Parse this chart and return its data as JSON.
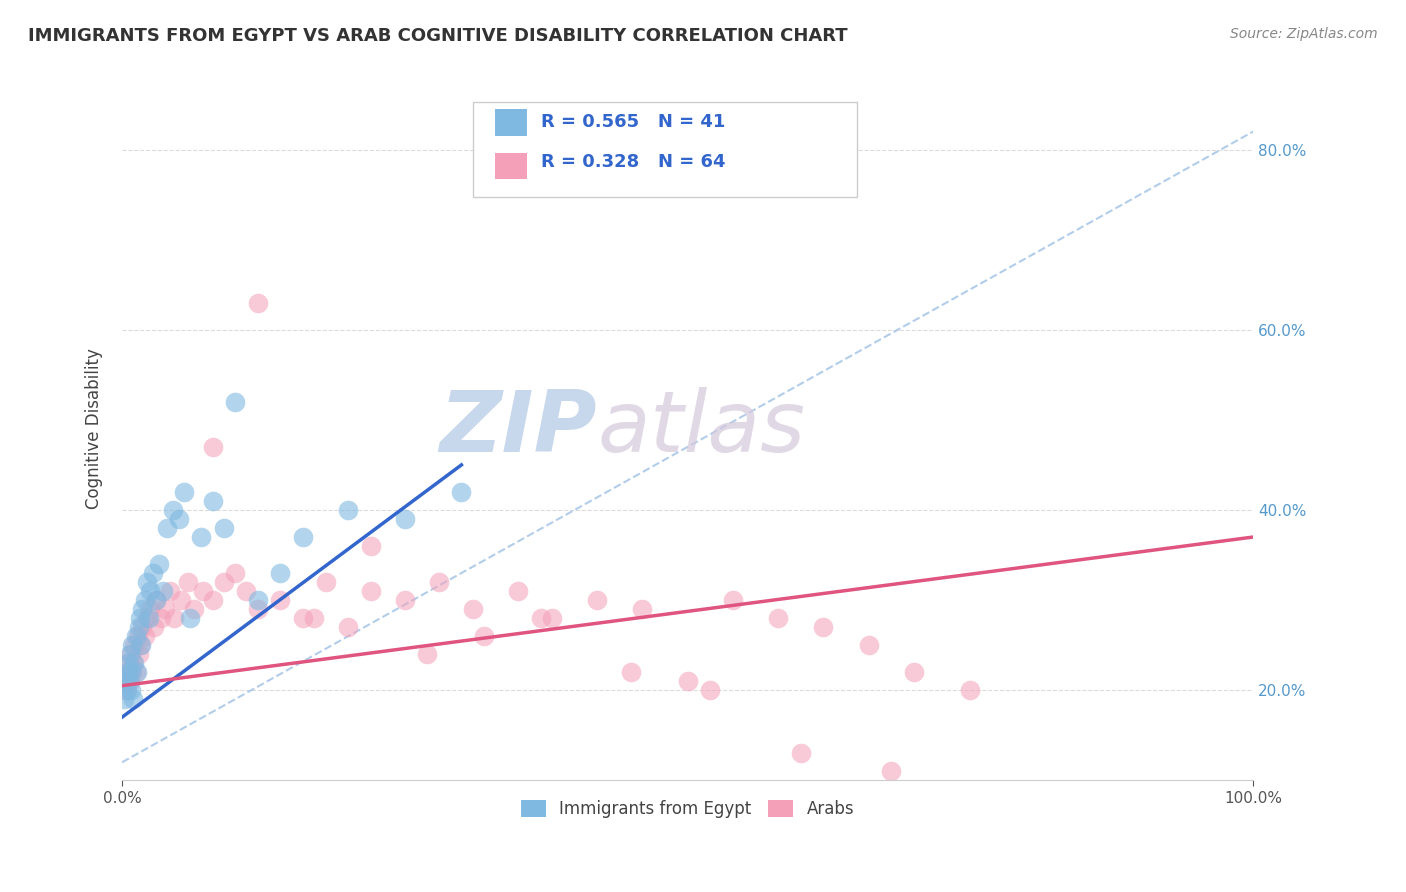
{
  "title": "IMMIGRANTS FROM EGYPT VS ARAB COGNITIVE DISABILITY CORRELATION CHART",
  "source": "Source: ZipAtlas.com",
  "ylabel": "Cognitive Disability",
  "legend_labels": [
    "Immigrants from Egypt",
    "Arabs"
  ],
  "legend_r": [
    0.565,
    0.328
  ],
  "legend_n": [
    41,
    64
  ],
  "blue_color": "#7fb8e0",
  "pink_color": "#f4a0b8",
  "blue_line_color": "#3366cc",
  "pink_line_color": "#e05580",
  "title_color": "#333333",
  "axis_label_color": "#444444",
  "watermark_color": "#cdd8e8",
  "background_color": "#ffffff",
  "xlim": [
    0.0,
    1.0
  ],
  "ylim": [
    0.1,
    0.88
  ],
  "yticks": [
    0.2,
    0.4,
    0.6,
    0.8
  ],
  "grid_color": "#cccccc",
  "blue_scatter_x": [
    0.002,
    0.003,
    0.004,
    0.005,
    0.005,
    0.006,
    0.007,
    0.008,
    0.008,
    0.009,
    0.01,
    0.011,
    0.012,
    0.013,
    0.015,
    0.016,
    0.017,
    0.018,
    0.02,
    0.022,
    0.024,
    0.025,
    0.027,
    0.03,
    0.033,
    0.036,
    0.04,
    0.045,
    0.05,
    0.055,
    0.06,
    0.07,
    0.08,
    0.09,
    0.1,
    0.12,
    0.14,
    0.16,
    0.2,
    0.25,
    0.3
  ],
  "blue_scatter_y": [
    0.19,
    0.21,
    0.2,
    0.22,
    0.23,
    0.21,
    0.24,
    0.2,
    0.22,
    0.25,
    0.19,
    0.23,
    0.26,
    0.22,
    0.27,
    0.28,
    0.25,
    0.29,
    0.3,
    0.32,
    0.28,
    0.31,
    0.33,
    0.3,
    0.34,
    0.31,
    0.38,
    0.4,
    0.39,
    0.42,
    0.28,
    0.37,
    0.41,
    0.38,
    0.52,
    0.3,
    0.33,
    0.37,
    0.4,
    0.39,
    0.42
  ],
  "pink_scatter_x": [
    0.002,
    0.003,
    0.004,
    0.004,
    0.005,
    0.006,
    0.007,
    0.008,
    0.009,
    0.01,
    0.011,
    0.012,
    0.014,
    0.015,
    0.016,
    0.018,
    0.02,
    0.022,
    0.025,
    0.028,
    0.03,
    0.034,
    0.038,
    0.042,
    0.046,
    0.052,
    0.058,
    0.064,
    0.072,
    0.08,
    0.09,
    0.1,
    0.11,
    0.12,
    0.14,
    0.16,
    0.18,
    0.2,
    0.22,
    0.25,
    0.28,
    0.31,
    0.35,
    0.38,
    0.42,
    0.46,
    0.5,
    0.54,
    0.58,
    0.62,
    0.66,
    0.7,
    0.75,
    0.08,
    0.12,
    0.17,
    0.22,
    0.27,
    0.32,
    0.37,
    0.45,
    0.52,
    0.6,
    0.68
  ],
  "pink_scatter_y": [
    0.21,
    0.2,
    0.22,
    0.21,
    0.23,
    0.22,
    0.21,
    0.24,
    0.22,
    0.23,
    0.25,
    0.22,
    0.26,
    0.24,
    0.25,
    0.27,
    0.26,
    0.28,
    0.29,
    0.27,
    0.3,
    0.28,
    0.29,
    0.31,
    0.28,
    0.3,
    0.32,
    0.29,
    0.31,
    0.3,
    0.32,
    0.33,
    0.31,
    0.29,
    0.3,
    0.28,
    0.32,
    0.27,
    0.31,
    0.3,
    0.32,
    0.29,
    0.31,
    0.28,
    0.3,
    0.29,
    0.21,
    0.3,
    0.28,
    0.27,
    0.25,
    0.22,
    0.2,
    0.47,
    0.63,
    0.28,
    0.36,
    0.24,
    0.26,
    0.28,
    0.22,
    0.2,
    0.13,
    0.11
  ],
  "blue_line_x": [
    0.0,
    0.3
  ],
  "blue_line_y_start": 0.17,
  "blue_line_y_end": 0.45,
  "pink_line_x": [
    0.0,
    1.0
  ],
  "pink_line_y_start": 0.205,
  "pink_line_y_end": 0.37,
  "ref_line_x": [
    0.0,
    1.0
  ],
  "ref_line_y": [
    0.12,
    0.82
  ]
}
